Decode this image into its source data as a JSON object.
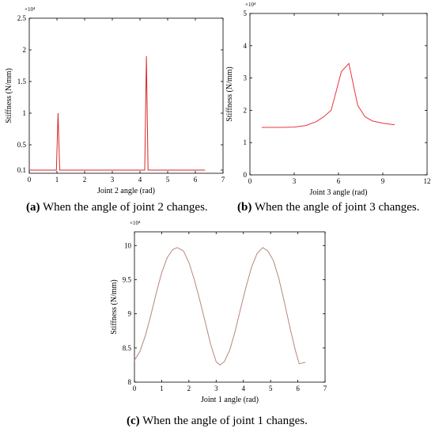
{
  "chart_data": [
    {
      "type": "line",
      "ylabel": "Stiffness (N/mm)",
      "xlabel": "Joint 2 angle (rad)",
      "exponent": "×10⁴",
      "xlim": [
        0,
        7
      ],
      "ylim": [
        0.05,
        2.5
      ],
      "xticks": [
        0,
        1,
        2,
        3,
        4,
        5,
        6,
        7
      ],
      "yticks": [
        0.1,
        0.5,
        1,
        1.5,
        2,
        2.5
      ],
      "line_color": "#d62728",
      "series": [
        {
          "x": [
            0,
            0.98,
            1.04,
            1.1,
            4.17,
            4.23,
            4.29,
            6.35
          ],
          "y": [
            0.1,
            0.1,
            1.0,
            0.1,
            0.1,
            1.9,
            0.1,
            0.1
          ]
        }
      ],
      "caption": {
        "label": "(a)",
        "text": " When the angle of joint 2 changes."
      }
    },
    {
      "type": "line",
      "ylabel": "Stiffness (N/mm)",
      "xlabel": "Joint 3 angle (rad)",
      "exponent": "×10⁴",
      "xlim": [
        0,
        12
      ],
      "ylim": [
        0,
        5
      ],
      "xticks": [
        0,
        3,
        6,
        9,
        12
      ],
      "yticks": [
        0,
        1,
        2,
        3,
        4,
        5
      ],
      "line_color": "#e8343c",
      "series": [
        {
          "x": [
            0.8,
            2.0,
            3.0,
            3.8,
            4.5,
            5.0,
            5.5,
            6.2,
            6.7,
            7.3,
            7.8,
            8.3,
            9.0,
            9.8
          ],
          "y": [
            1.47,
            1.47,
            1.48,
            1.53,
            1.65,
            1.8,
            2.0,
            3.2,
            3.45,
            2.15,
            1.8,
            1.67,
            1.6,
            1.55
          ]
        }
      ],
      "caption": {
        "label": "(b)",
        "text": " When the angle of joint 3 changes."
      }
    },
    {
      "type": "line",
      "ylabel": "Stiffness (N/mm)",
      "xlabel": "Joint 1 angle (rad)",
      "exponent": "×10⁴",
      "xlim": [
        0,
        7
      ],
      "ylim": [
        8,
        10.2
      ],
      "xticks": [
        0,
        1,
        2,
        3,
        4,
        5,
        6,
        7
      ],
      "yticks": [
        8,
        8.5,
        9,
        9.5,
        10
      ],
      "line_color": "#b5877a",
      "series": [
        {
          "x": [
            0,
            0.2,
            0.4,
            0.6,
            0.8,
            1.0,
            1.2,
            1.4,
            1.57,
            1.8,
            2.0,
            2.2,
            2.4,
            2.6,
            2.8,
            3.0,
            3.14,
            3.3,
            3.5,
            3.7,
            3.9,
            4.1,
            4.3,
            4.5,
            4.71,
            4.9,
            5.1,
            5.3,
            5.5,
            5.7,
            5.9,
            6.05,
            6.28
          ],
          "y": [
            8.32,
            8.45,
            8.68,
            8.98,
            9.3,
            9.6,
            9.82,
            9.94,
            9.97,
            9.92,
            9.75,
            9.5,
            9.2,
            8.88,
            8.55,
            8.3,
            8.25,
            8.3,
            8.47,
            8.75,
            9.08,
            9.4,
            9.68,
            9.88,
            9.97,
            9.92,
            9.78,
            9.52,
            9.18,
            8.82,
            8.48,
            8.27,
            8.29
          ]
        }
      ],
      "caption": {
        "label": "(c)",
        "text": " When the angle of joint 1 changes."
      }
    }
  ]
}
